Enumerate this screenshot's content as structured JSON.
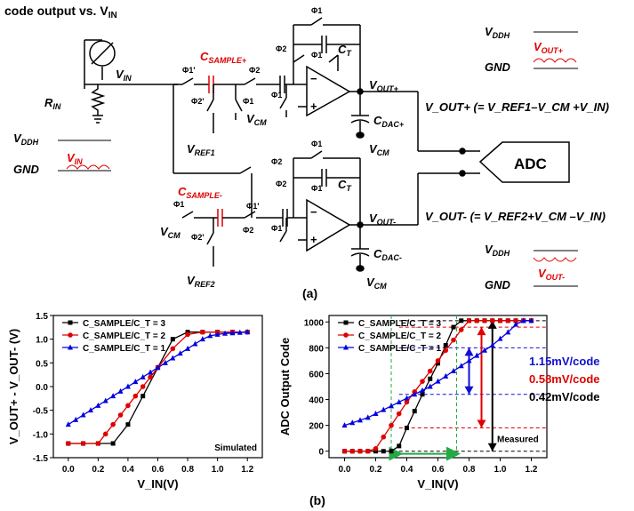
{
  "header_fragment": "code output vs. V",
  "header_sub": "IN",
  "circuit": {
    "rin": "R",
    "rin_sub": "IN",
    "vin": "V",
    "vin_sub": "IN",
    "phi1p": "Φ1'",
    "phi2": "Φ2",
    "phi1": "Φ1",
    "phi2p": "Φ2'",
    "csample_p": "C",
    "csample_p_sub": "SAMPLE+",
    "csample_n": "C",
    "csample_n_sub": "SAMPLE-",
    "ct": "C",
    "ct_sub": "T",
    "vcm": "V",
    "vcm_sub": "CM",
    "vref1": "V",
    "vref1_sub": "REF1",
    "vref2": "V",
    "vref2_sub": "REF2",
    "voutp": "V",
    "voutp_sub": "OUT+",
    "voutn": "V",
    "voutn_sub": "OUT-",
    "cdacp": "C",
    "cdacp_sub": "DAC+",
    "cdacn": "C",
    "cdacn_sub": "DAC-",
    "vddh": "V",
    "vddh_sub": "DDH",
    "gnd": "GND",
    "adc": "ADC",
    "eq_p": "V_OUT+ (= V_REF1–V_CM +V_IN)",
    "eq_n": "V_OUT- (= V_REF2+V_CM –V_IN)",
    "caption_a": "(a)"
  },
  "chart_data": [
    {
      "type": "line",
      "ylabel": "V_OUT+ - V_OUT- (V)",
      "xlabel": "V_IN(V)",
      "annotation": "Simulated",
      "xlim": [
        -0.1,
        1.3
      ],
      "ylim": [
        -1.5,
        1.5
      ],
      "xticks": [
        "0.0",
        "0.2",
        "0.4",
        "0.6",
        "0.8",
        "1.0",
        "1.2"
      ],
      "yticks": [
        "1.5",
        "1.0",
        "0.5",
        "0.0",
        "-0.5",
        "-1.0",
        "-1.5"
      ],
      "legend": [
        "C_SAMPLE/C_T = 3",
        "C_SAMPLE/C_T = 2",
        "C_SAMPLE/C_T = 1"
      ],
      "series": [
        {
          "name": "C_SAMPLE/C_T = 3",
          "color": "#000000",
          "marker": "square",
          "x": [
            0.0,
            0.1,
            0.2,
            0.3,
            0.4,
            0.5,
            0.6,
            0.7,
            0.8,
            0.9,
            1.0,
            1.1,
            1.2
          ],
          "y": [
            -1.2,
            -1.2,
            -1.2,
            -1.2,
            -0.8,
            -0.2,
            0.4,
            1.0,
            1.15,
            1.15,
            1.15,
            1.15,
            1.15
          ]
        },
        {
          "name": "C_SAMPLE/C_T = 2",
          "color": "#e00000",
          "marker": "circle",
          "x": [
            0.0,
            0.1,
            0.2,
            0.25,
            0.3,
            0.35,
            0.4,
            0.45,
            0.5,
            0.55,
            0.6,
            0.7,
            0.8,
            0.9,
            1.0,
            1.1,
            1.2
          ],
          "y": [
            -1.2,
            -1.2,
            -1.2,
            -1.0,
            -0.8,
            -0.6,
            -0.4,
            -0.2,
            0.0,
            0.2,
            0.4,
            0.8,
            1.1,
            1.15,
            1.15,
            1.15,
            1.15
          ]
        },
        {
          "name": "C_SAMPLE/C_T = 1",
          "color": "#0000e0",
          "marker": "triangle",
          "x": [
            0.0,
            0.05,
            0.1,
            0.15,
            0.2,
            0.25,
            0.3,
            0.35,
            0.4,
            0.45,
            0.5,
            0.55,
            0.6,
            0.65,
            0.7,
            0.75,
            0.8,
            0.85,
            0.9,
            0.95,
            1.0,
            1.05,
            1.1,
            1.15,
            1.2
          ],
          "y": [
            -0.8,
            -0.7,
            -0.6,
            -0.5,
            -0.4,
            -0.3,
            -0.2,
            -0.1,
            0.0,
            0.1,
            0.2,
            0.3,
            0.4,
            0.5,
            0.6,
            0.7,
            0.8,
            0.9,
            1.0,
            1.07,
            1.1,
            1.12,
            1.13,
            1.14,
            1.15
          ]
        }
      ]
    },
    {
      "type": "line",
      "ylabel": "ADC Output Code",
      "xlabel": "V_IN(V)",
      "annotation": "Measured",
      "xlim": [
        -0.1,
        1.3
      ],
      "ylim": [
        -50,
        1050
      ],
      "xticks": [
        "0.0",
        "0.2",
        "0.4",
        "0.6",
        "0.8",
        "1.0",
        "1.2"
      ],
      "yticks": [
        "1000",
        "800",
        "600",
        "400",
        "200",
        "0"
      ],
      "legend": [
        "C_SAMPLE/C_T = 3",
        "C_SAMPLE/C_T = 2",
        "C_SAMPLE/C_T = 1"
      ],
      "resolution_labels": [
        {
          "text": "1.15mV/code",
          "color": "#1010d0"
        },
        {
          "text": "0.58mV/code",
          "color": "#e00000"
        },
        {
          "text": "0.42mV/code",
          "color": "#000000"
        }
      ],
      "series": [
        {
          "name": "C_SAMPLE/C_T = 3",
          "color": "#000000",
          "marker": "square",
          "x": [
            0.0,
            0.05,
            0.1,
            0.15,
            0.2,
            0.25,
            0.3,
            0.35,
            0.4,
            0.45,
            0.5,
            0.55,
            0.6,
            0.65,
            0.7,
            0.75,
            0.8,
            0.85,
            0.9,
            0.95,
            1.0,
            1.05,
            1.1,
            1.15,
            1.2
          ],
          "y": [
            0,
            0,
            0,
            0,
            0,
            0,
            0,
            40,
            180,
            310,
            440,
            560,
            680,
            820,
            960,
            1010,
            1010,
            1010,
            1010,
            1010,
            1010,
            1010,
            1010,
            1010,
            1010
          ]
        },
        {
          "name": "C_SAMPLE/C_T = 2",
          "color": "#e00000",
          "marker": "circle",
          "x": [
            0.0,
            0.05,
            0.1,
            0.15,
            0.2,
            0.25,
            0.3,
            0.35,
            0.4,
            0.45,
            0.5,
            0.55,
            0.6,
            0.65,
            0.7,
            0.75,
            0.8,
            0.85,
            0.9,
            0.95,
            1.0,
            1.05,
            1.1,
            1.15,
            1.2
          ],
          "y": [
            0,
            0,
            0,
            0,
            20,
            110,
            200,
            290,
            380,
            460,
            540,
            620,
            700,
            780,
            860,
            940,
            1010,
            1010,
            1010,
            1010,
            1010,
            1010,
            1010,
            1010,
            1010
          ]
        },
        {
          "name": "C_SAMPLE/C_T = 1",
          "color": "#0000e0",
          "marker": "triangle",
          "x": [
            0.0,
            0.05,
            0.1,
            0.15,
            0.2,
            0.25,
            0.3,
            0.35,
            0.4,
            0.45,
            0.5,
            0.55,
            0.6,
            0.65,
            0.7,
            0.75,
            0.8,
            0.85,
            0.9,
            0.95,
            1.0,
            1.05,
            1.1,
            1.15,
            1.2
          ],
          "y": [
            200,
            220,
            240,
            260,
            290,
            320,
            350,
            380,
            410,
            440,
            470,
            500,
            540,
            580,
            620,
            660,
            700,
            740,
            780,
            820,
            870,
            920,
            980,
            1010,
            1010
          ]
        }
      ]
    }
  ],
  "caption_b": "(b)"
}
